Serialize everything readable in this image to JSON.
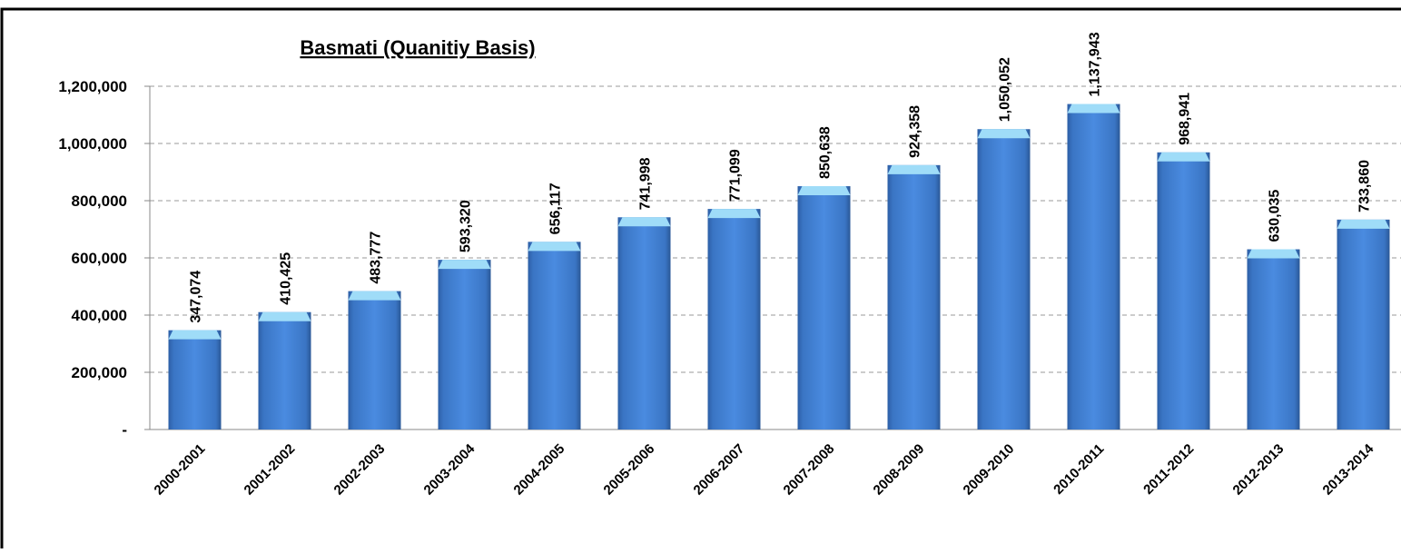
{
  "chart_data": {
    "type": "bar",
    "title": "Basmati (Quanitiy Basis)",
    "categories": [
      "2000-2001",
      "2001-2002",
      "2002-2003",
      "2003-2004",
      "2004-2005",
      "2005-2006",
      "2006-2007",
      "2007-2008",
      "2008-2009",
      "2009-2010",
      "2010-2011",
      "2011-2012",
      "2012-2013",
      "2013-2014"
    ],
    "values": [
      347074,
      410425,
      483777,
      593320,
      656117,
      741998,
      771099,
      850638,
      924358,
      1050052,
      1137943,
      968941,
      630035,
      733860
    ],
    "value_labels": [
      "347,074",
      "410,425",
      "483,777",
      "593,320",
      "656,117",
      "741,998",
      "771,099",
      "850,638",
      "924,358",
      "1,050,052",
      "1,137,943",
      "968,941",
      "630,035",
      "733,860"
    ],
    "color": "#3f7fd0",
    "ylim": [
      0,
      1200000
    ],
    "yticks": [
      {
        "value": 0,
        "label": "-"
      },
      {
        "value": 200000,
        "label": "200,000"
      },
      {
        "value": 400000,
        "label": "400,000"
      },
      {
        "value": 600000,
        "label": "600,000"
      },
      {
        "value": 800000,
        "label": "800,000"
      },
      {
        "value": 1000000,
        "label": "1,000,000"
      },
      {
        "value": 1200000,
        "label": "1,200,000"
      }
    ],
    "grid": true
  }
}
